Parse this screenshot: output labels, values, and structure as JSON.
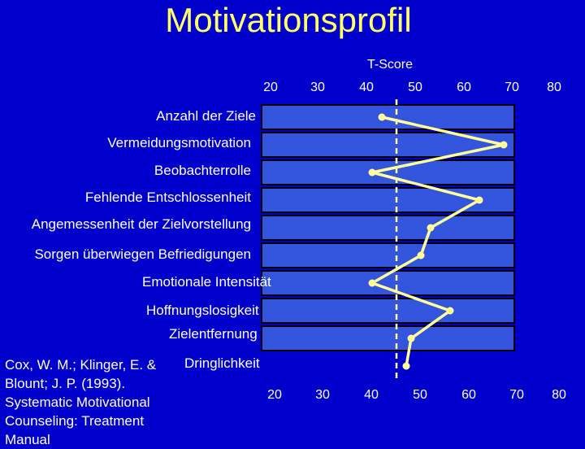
{
  "colors": {
    "background": "#0000cc",
    "title": "#ffff66",
    "text": "#ffffff",
    "profile_line": "#ffff99",
    "row_box": "#3355dd"
  },
  "title": "Motivationsprofil",
  "citation": [
    "Cox, W. M.; Klinger, E. &",
    "Blount; J. P. (1993).",
    "Systematic Motivational",
    "Counseling: Treatment",
    "Manual"
  ],
  "chart_data": {
    "type": "line",
    "title": "Motivationsprofil",
    "xlabel": "T-Score",
    "xlim": [
      20,
      80
    ],
    "xticks": [
      "20",
      "30",
      "40",
      "50",
      "60",
      "70",
      "80"
    ],
    "reference_line": 45,
    "categories": [
      "Anzahl der Ziele",
      "Vermeidungsmotivation",
      "Beobachterrolle",
      "Fehlende Entschlossenheit",
      "Angemessenheit der Zielvorstellung",
      "Sorgen überwiegen Befriedigungen",
      "Emotionale Intensität",
      "Hoffnungslosigkeit",
      "Zielentfernung",
      "Dringlichkeit"
    ],
    "series": [
      {
        "values": [
          42,
          67,
          40,
          62,
          52,
          50,
          40,
          56,
          48,
          47
        ]
      }
    ]
  }
}
